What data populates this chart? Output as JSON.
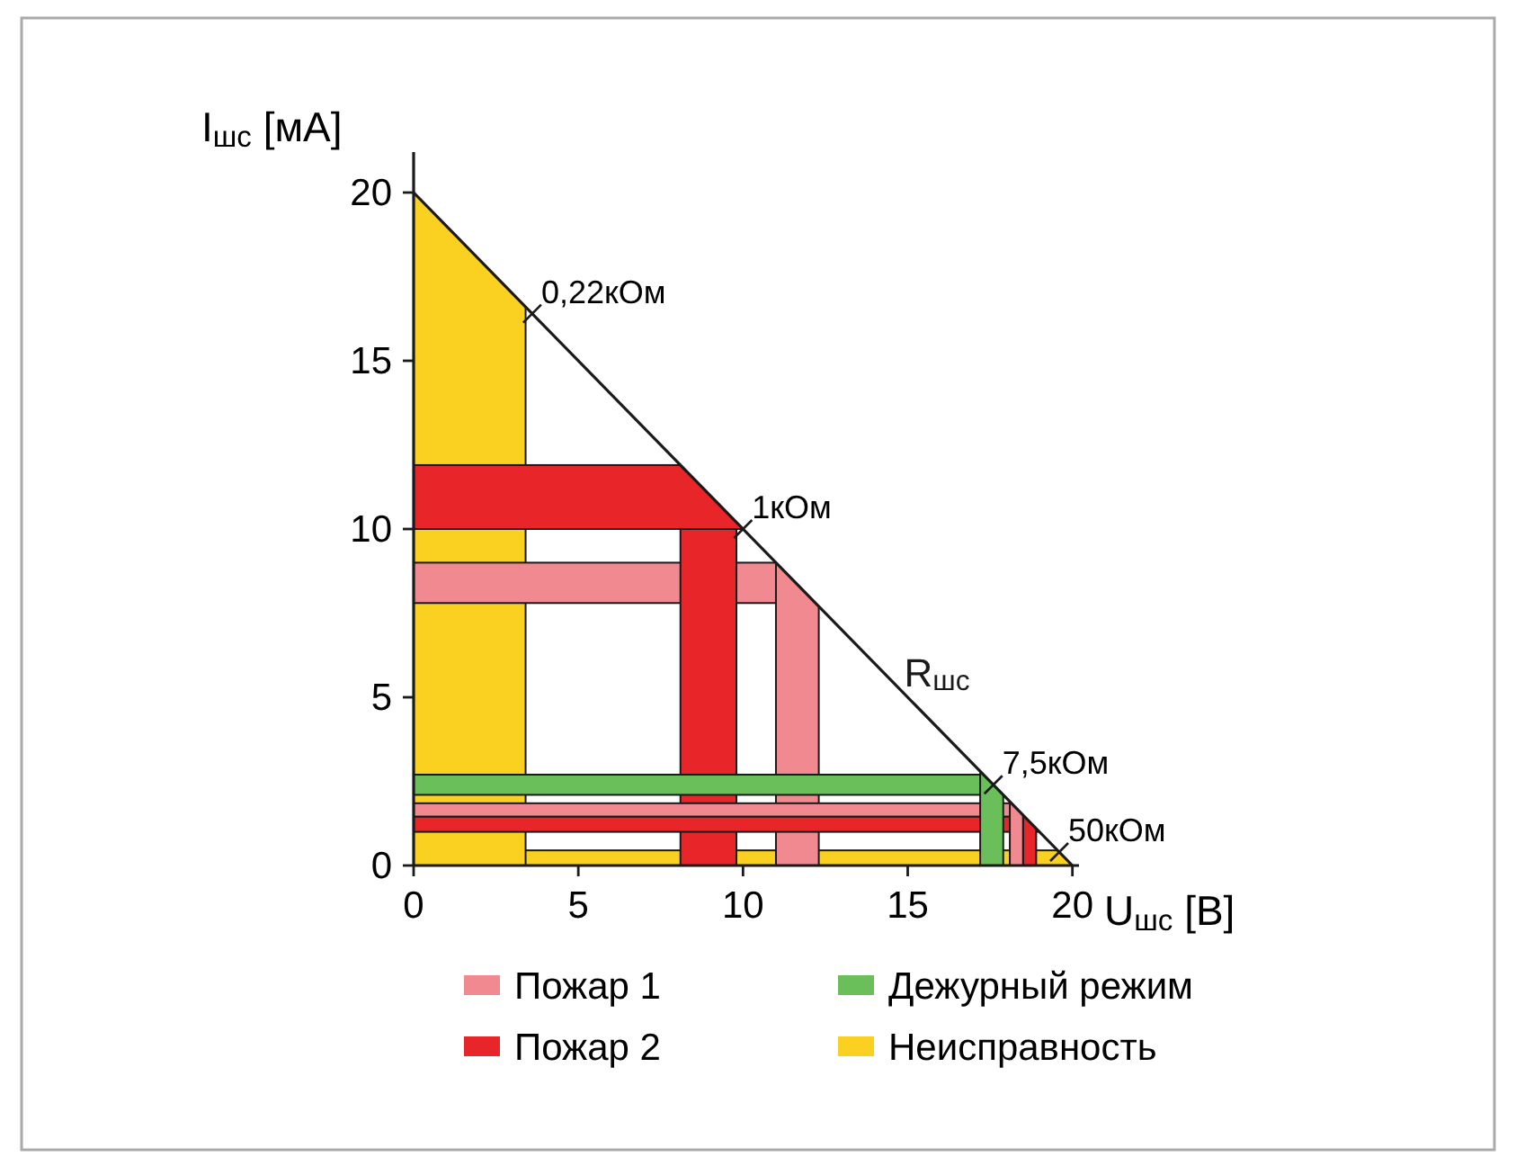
{
  "chart_data": {
    "type": "line",
    "xlabel": "U$_{шс}$ [В]",
    "ylabel": "I$_{шс}$ [мА]",
    "xlim": [
      0,
      20.2
    ],
    "ylim": [
      0,
      21.2
    ],
    "xticks": [
      0,
      5,
      10,
      15,
      20
    ],
    "yticks": [
      0,
      5,
      10,
      15,
      20
    ],
    "series": [
      {
        "name": "R$_{шс}$",
        "color": "#1a1a1a",
        "x": [
          0,
          20
        ],
        "values": [
          20,
          0
        ]
      }
    ],
    "bands": [
      {
        "axis": "x",
        "from": 18.1,
        "to": 18.5,
        "color": "#f08a90",
        "label": "Пожар 1"
      },
      {
        "axis": "x",
        "from": 18.5,
        "to": 18.9,
        "color": "#e8262a",
        "label": "Пожар 2"
      },
      {
        "axis": "x",
        "from": 17.2,
        "to": 17.9,
        "color": "#6abf5a",
        "label": "Дежурный режим"
      },
      {
        "axis": "y",
        "from": 2.1,
        "to": 2.7,
        "color": "#6abf5a"
      },
      {
        "axis": "y",
        "from": 1.0,
        "to": 1.45,
        "color": "#e8262a"
      },
      {
        "axis": "y",
        "from": 1.45,
        "to": 1.85,
        "color": "#f08a90"
      },
      {
        "axis": "y",
        "from": 10,
        "to": 11.9,
        "color": "#e8262a"
      },
      {
        "axis": "x",
        "from": 11,
        "to": 12.3,
        "color": "#f08a90"
      },
      {
        "axis": "x",
        "from": 8.1,
        "to": 9.8,
        "color": "#e8262a"
      },
      {
        "axis": "y",
        "from": 7.8,
        "to": 9,
        "color": "#f08a90"
      },
      {
        "axis": "x",
        "from": 0,
        "to": 3.4,
        "color": "#fbd121",
        "label": "Неисправность"
      },
      {
        "axis": "y",
        "from": 0,
        "to": 0.45,
        "color": "#fbd121"
      }
    ],
    "annotations": [
      {
        "text": "0,22кОм",
        "x": 3.6,
        "y": 16.4
      },
      {
        "text": "1кОм",
        "x": 10,
        "y": 10
      },
      {
        "text": "7,5кОм",
        "x": 17.6,
        "y": 2.4
      },
      {
        "text": "50кОм",
        "x": 19.6,
        "y": 0.4
      }
    ],
    "legend": "bottom",
    "grid": false,
    "marker": "none",
    "line_style": "solid"
  }
}
